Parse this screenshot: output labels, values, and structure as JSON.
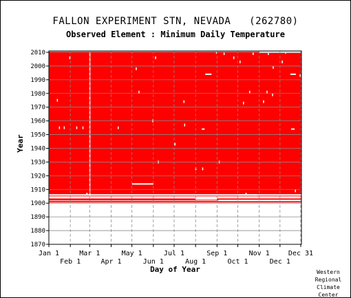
{
  "header": {
    "title": "FALLON EXPERIMENT STN, NEVADA   (262780)",
    "subtitle": "Observed Element : Minimum Daily Temperature"
  },
  "credit": [
    "Western",
    "Regional",
    "Climate",
    "Center"
  ],
  "colors": {
    "data": "#ff0000",
    "missing": "#ffffff",
    "grid": "#888888",
    "axis": "#000000",
    "background": "#ffffff"
  },
  "chart_data": {
    "type": "heatmap",
    "title": "FALLON EXPERIMENT STN, NEVADA   (262780)",
    "subtitle": "Observed Element : Minimum Daily Temperature",
    "xlabel": "Day of Year",
    "ylabel": "Year",
    "xlim": [
      1,
      366
    ],
    "ylim": [
      1870,
      2011
    ],
    "yticks": [
      1870,
      1880,
      1890,
      1900,
      1910,
      1920,
      1930,
      1940,
      1950,
      1960,
      1970,
      1980,
      1990,
      2000,
      2010
    ],
    "xticks": [
      {
        "label": "Jan 1",
        "day": 1,
        "row": 1
      },
      {
        "label": "Feb 1",
        "day": 32,
        "row": 2
      },
      {
        "label": "Mar 1",
        "day": 60,
        "row": 1
      },
      {
        "label": "Apr 1",
        "day": 91,
        "row": 2
      },
      {
        "label": "May 1",
        "day": 121,
        "row": 1
      },
      {
        "label": "Jun 1",
        "day": 152,
        "row": 2
      },
      {
        "label": "Jul 1",
        "day": 182,
        "row": 1
      },
      {
        "label": "Aug 1",
        "day": 213,
        "row": 2
      },
      {
        "label": "Sep 1",
        "day": 244,
        "row": 1
      },
      {
        "label": "Oct 1",
        "day": 274,
        "row": 2
      },
      {
        "label": "Nov 1",
        "day": 305,
        "row": 1
      },
      {
        "label": "Dec 1",
        "day": 335,
        "row": 2
      },
      {
        "label": "Dec 31",
        "day": 365,
        "row": 1
      }
    ],
    "grid": true,
    "data_regions": [
      {
        "year_start": 1905,
        "year_end": 2010.5,
        "day_start": 1,
        "day_end": 366,
        "status": "observed"
      },
      {
        "year_start": 1902,
        "year_end": 1903.5,
        "day_start": 1,
        "day_end": 366,
        "status": "observed"
      },
      {
        "year_start": 1900.5,
        "year_end": 1901.5,
        "day_start": 1,
        "day_end": 366,
        "status": "observed"
      }
    ],
    "missing_segments": [
      {
        "year": 1906,
        "day_start": 1,
        "day_end": 366
      },
      {
        "year": 1904,
        "day_start": 1,
        "day_end": 366
      },
      {
        "year": 1902,
        "day_start": 246,
        "day_end": 366
      },
      {
        "year": 1914,
        "day_start": 121,
        "day_end": 152
      },
      {
        "year": 1903,
        "day_start": 213,
        "day_end": 244
      },
      {
        "year": 2010,
        "day_start": 305,
        "day_end": 366
      },
      {
        "year": 1994,
        "day_start": 227,
        "day_end": 236
      },
      {
        "year": 1994,
        "day_start": 350,
        "day_end": 358
      },
      {
        "year": 1954,
        "day_start": 222,
        "day_end": 226
      },
      {
        "year": 1954,
        "day_start": 351,
        "day_end": 356
      },
      {
        "year": 1906,
        "day_start": 275,
        "day_end": 300
      },
      {
        "year": 1906,
        "day_start": 298,
        "day_end": 302
      },
      {
        "year": 1907,
        "day_start": 55,
        "day_end": 57
      },
      {
        "year": 1907,
        "day_start": 285,
        "day_end": 287
      }
    ],
    "missing_days": [
      {
        "day": 60,
        "year_start": 1905,
        "year_end": 2010.5
      },
      {
        "day": 31,
        "year_start": 2005,
        "year_end": 2007
      },
      {
        "day": 13,
        "year_start": 1974,
        "year_end": 1976
      },
      {
        "day": 16,
        "year_start": 1954,
        "year_end": 1956
      },
      {
        "day": 23,
        "year_start": 1954,
        "year_end": 1956
      },
      {
        "day": 41,
        "year_start": 1954,
        "year_end": 1956
      },
      {
        "day": 50,
        "year_start": 1954,
        "year_end": 1956
      },
      {
        "day": 101,
        "year_start": 1954,
        "year_end": 1956
      },
      {
        "day": 127,
        "year_start": 1997,
        "year_end": 1999
      },
      {
        "day": 131,
        "year_start": 1980,
        "year_end": 1982
      },
      {
        "day": 151,
        "year_start": 1959,
        "year_end": 1961
      },
      {
        "day": 155,
        "year_start": 2005,
        "year_end": 2007
      },
      {
        "day": 159,
        "year_start": 1929,
        "year_end": 1931
      },
      {
        "day": 183,
        "year_start": 1942,
        "year_end": 1944
      },
      {
        "day": 196,
        "year_start": 1973,
        "year_end": 1975
      },
      {
        "day": 197,
        "year_start": 1956,
        "year_end": 1958
      },
      {
        "day": 213,
        "year_start": 1924,
        "year_end": 1926
      },
      {
        "day": 223,
        "year_start": 1924,
        "year_end": 1926
      },
      {
        "day": 243,
        "year_start": 2009,
        "year_end": 2011
      },
      {
        "day": 247,
        "year_start": 1929,
        "year_end": 1931
      },
      {
        "day": 254,
        "year_start": 2008,
        "year_end": 2010
      },
      {
        "day": 268,
        "year_start": 2005,
        "year_end": 2007
      },
      {
        "day": 277,
        "year_start": 2002,
        "year_end": 2004
      },
      {
        "day": 282,
        "year_start": 1972,
        "year_end": 1974
      },
      {
        "day": 291,
        "year_start": 1980,
        "year_end": 1982
      },
      {
        "day": 296,
        "year_start": 2008,
        "year_end": 2010
      },
      {
        "day": 311,
        "year_start": 1973,
        "year_end": 1975
      },
      {
        "day": 316,
        "year_start": 1980,
        "year_end": 1982
      },
      {
        "day": 318,
        "year_start": 2008,
        "year_end": 2010
      },
      {
        "day": 324,
        "year_start": 1978,
        "year_end": 1980
      },
      {
        "day": 325,
        "year_start": 1998,
        "year_end": 2000
      },
      {
        "day": 338,
        "year_start": 2002,
        "year_end": 2004
      },
      {
        "day": 343,
        "year_start": 2009,
        "year_end": 2011
      },
      {
        "day": 357,
        "year_start": 1908,
        "year_end": 1910
      },
      {
        "day": 364,
        "year_start": 1992,
        "year_end": 1994
      }
    ]
  }
}
